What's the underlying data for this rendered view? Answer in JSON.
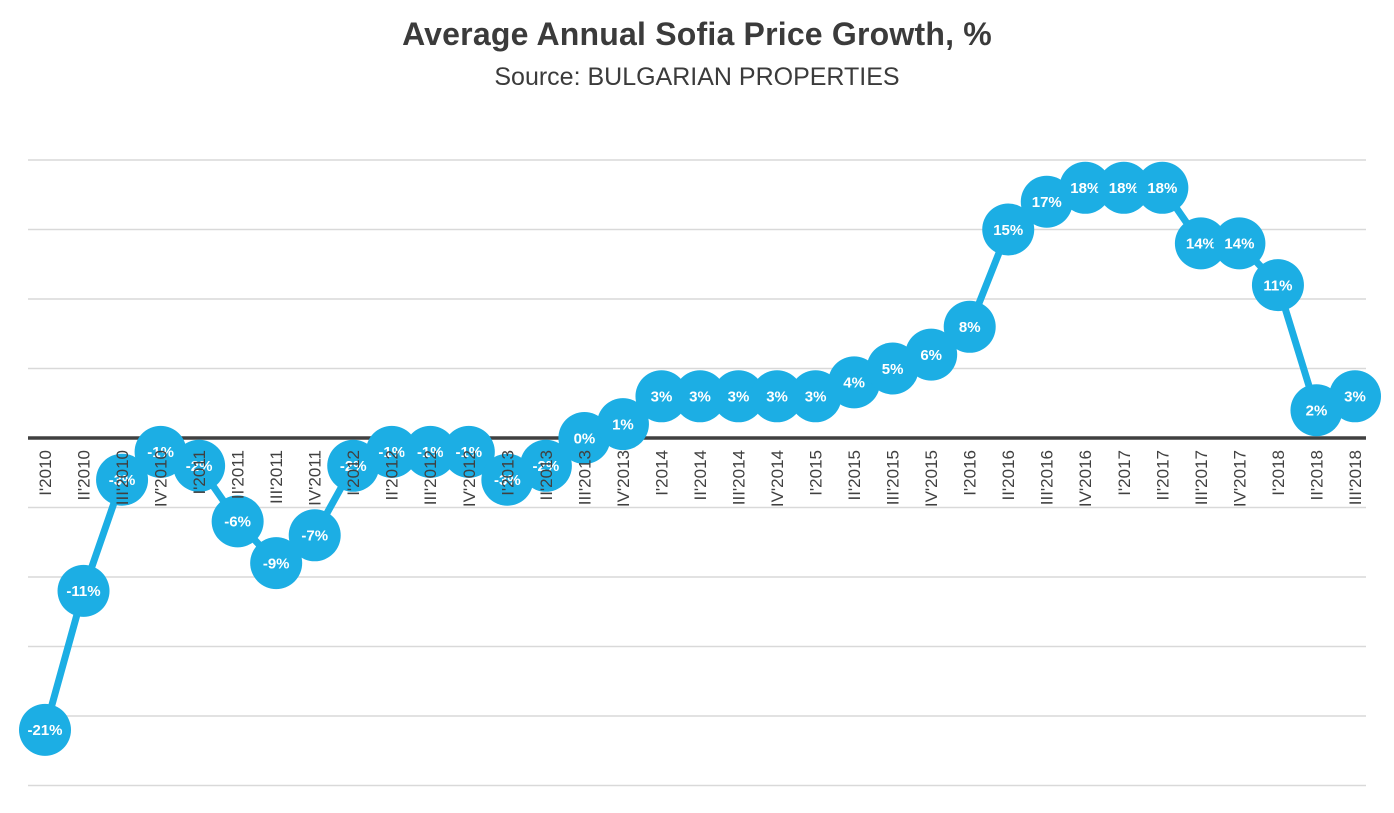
{
  "header": {
    "title": "Average Annual Sofia Price Growth, %",
    "subtitle": "Source: BULGARIAN PROPERTIES"
  },
  "chart_data": {
    "type": "line",
    "title": "Average Annual Sofia Price Growth, %",
    "subtitle": "Source: BULGARIAN PROPERTIES",
    "categories": [
      "I'2010",
      "II'2010",
      "III'2010",
      "IV'2010",
      "I'2011",
      "II'2011",
      "III'2011",
      "IV'2011",
      "I'2012",
      "II'2012",
      "III'2012",
      "IV'2012",
      "I'2013",
      "II'2013",
      "III'2013",
      "IV'2013",
      "I'2014",
      "II'2014",
      "III'2014",
      "IV'2014",
      "I'2015",
      "II'2015",
      "III'2015",
      "IV'2015",
      "I'2016",
      "II'2016",
      "III'2016",
      "IV'2016",
      "I'2017",
      "II'2017",
      "III'2017",
      "IV'2017",
      "I'2018",
      "II'2018",
      "III'2018"
    ],
    "values": [
      -21,
      -11,
      -3,
      -1,
      -2,
      -6,
      -9,
      -7,
      -2,
      -1,
      -1,
      -1,
      -3,
      -2,
      0,
      1,
      3,
      3,
      3,
      3,
      3,
      4,
      5,
      6,
      8,
      15,
      17,
      18,
      18,
      18,
      14,
      14,
      11,
      2,
      3
    ],
    "unit": "%",
    "xlabel": "",
    "ylabel": "",
    "ylim": [
      -25,
      20
    ],
    "gridline_step": 5,
    "grid": true,
    "legend": false,
    "marker_style": "filled-circle-with-label",
    "colors": {
      "marker": "#1caee4",
      "line": "#1caee4",
      "point_label": "#ffffff",
      "axis_label": "#404040",
      "zero_line": "#404040",
      "gridline": "#d9d9d9"
    }
  }
}
